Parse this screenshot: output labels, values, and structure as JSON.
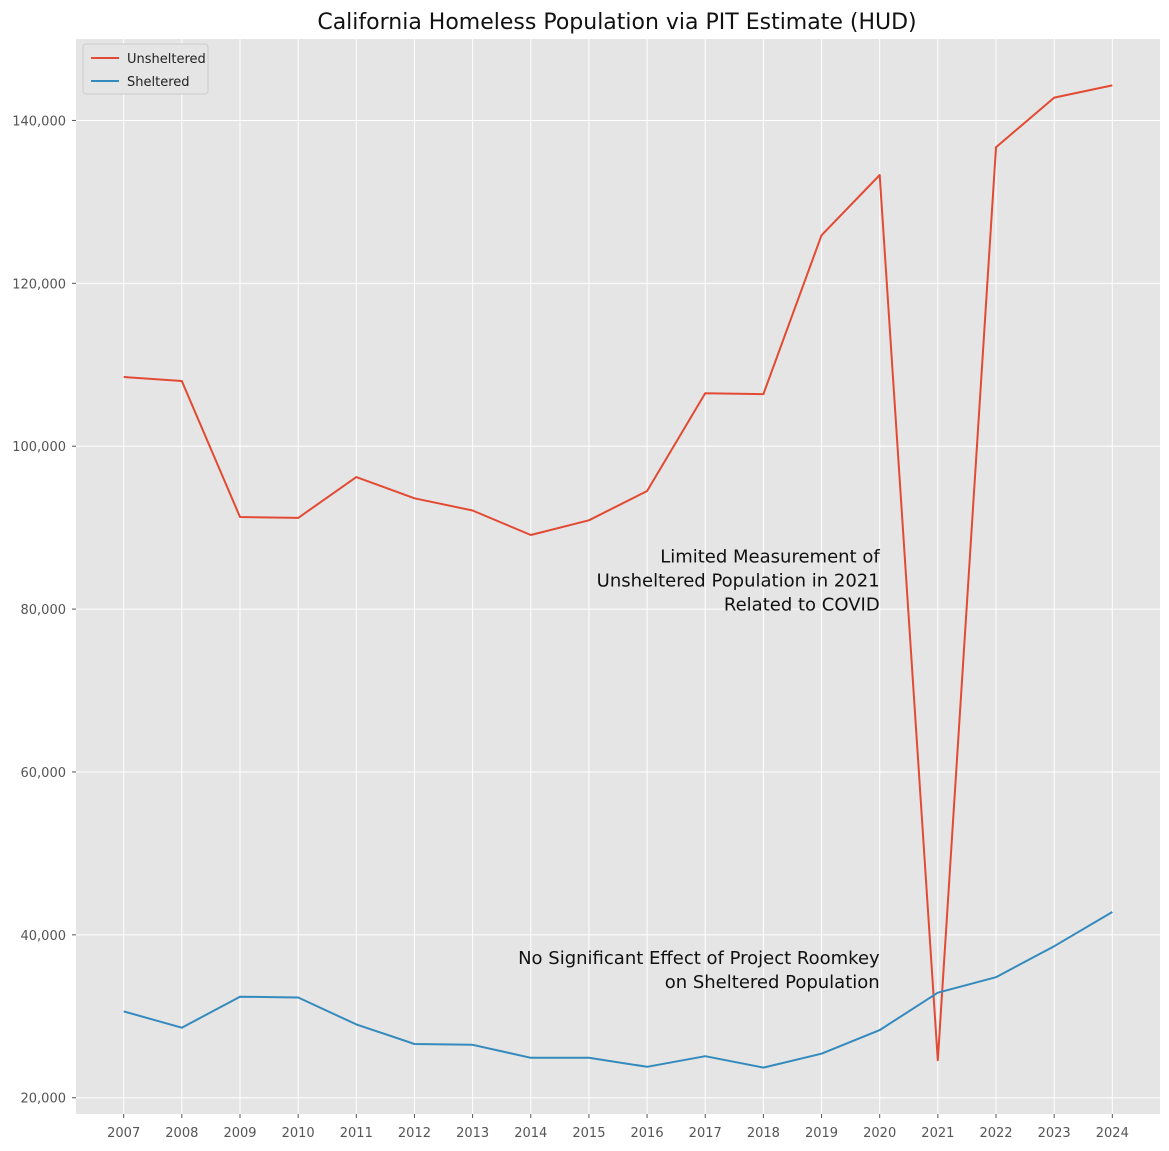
{
  "chart_data": {
    "type": "line",
    "title": "California Homeless Population via PIT Estimate (HUD)",
    "xlabel": "",
    "ylabel": "",
    "grid": true,
    "legend_position": "top-left",
    "x": [
      2007,
      2008,
      2009,
      2010,
      2011,
      2012,
      2013,
      2014,
      2015,
      2016,
      2017,
      2018,
      2019,
      2020,
      2021,
      2022,
      2023,
      2024
    ],
    "x_tick_labels": [
      "2007",
      "2008",
      "2009",
      "2010",
      "2011",
      "2012",
      "2013",
      "2014",
      "2015",
      "2016",
      "2017",
      "2018",
      "2019",
      "2020",
      "2021",
      "2022",
      "2023",
      "2024"
    ],
    "ylim": [
      18000,
      150000
    ],
    "y_ticks": [
      20000,
      40000,
      60000,
      80000,
      100000,
      120000,
      140000
    ],
    "y_tick_labels": [
      "20,000",
      "40,000",
      "60,000",
      "80,000",
      "100,000",
      "120,000",
      "140,000"
    ],
    "series": [
      {
        "name": "Unsheltered",
        "color": "#E24A33",
        "values": [
          108500,
          108000,
          91300,
          91200,
          96200,
          93600,
          92100,
          89100,
          90900,
          94500,
          106500,
          106400,
          125900,
          133300,
          24600,
          136700,
          142800,
          144300
        ]
      },
      {
        "name": "Sheltered",
        "color": "#348ABD",
        "values": [
          30600,
          28600,
          32400,
          32300,
          29000,
          26600,
          26500,
          24900,
          24900,
          23800,
          25100,
          23700,
          25400,
          28300,
          32900,
          34800,
          38600,
          42800
        ]
      }
    ],
    "annotations": [
      {
        "lines": [
          "Limited Measurement of",
          "Unsheltered Population in 2021",
          "Related to COVID"
        ],
        "x": 2020,
        "y": 83500,
        "align": "right"
      },
      {
        "lines": [
          "No Significant Effect of Project Roomkey",
          "on Sheltered Population"
        ],
        "x": 2020,
        "y": 35700,
        "align": "right"
      }
    ]
  }
}
